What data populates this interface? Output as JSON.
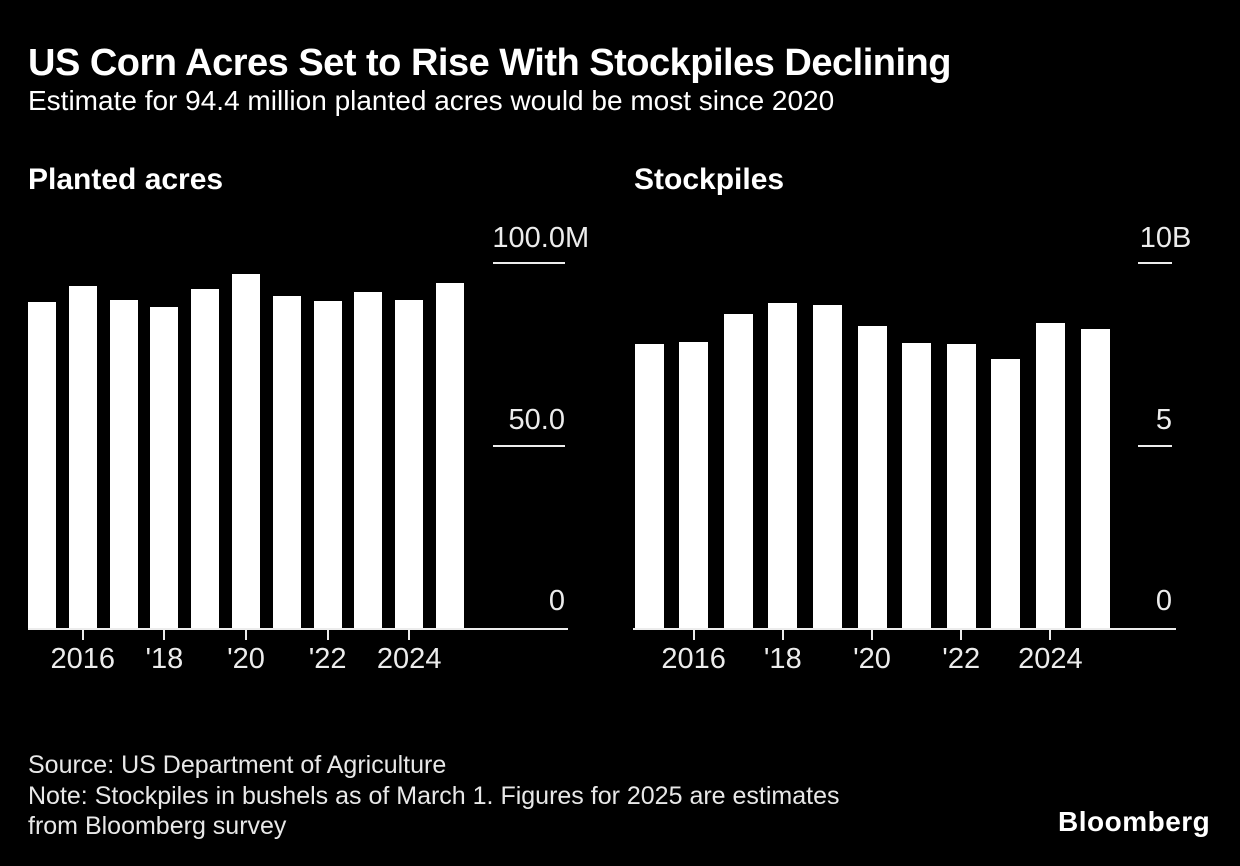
{
  "header": {
    "title": "US Corn Acres Set to Rise With Stockpiles Declining",
    "subtitle": "Estimate for 94.4 million planted acres would be most since 2020"
  },
  "footer": {
    "source": "Source: US Department of Agriculture",
    "note_line1": "Note: Stockpiles in bushels as of March 1. Figures for 2025 are estimates",
    "note_line2": "from Bloomberg survey",
    "logo_text": "Bloomberg"
  },
  "colors": {
    "background": "#000000",
    "bar": "#ffffff",
    "title_text": "#ffffff",
    "axis_and_labels": "#ececec",
    "footer_text": "#e8e8e8"
  },
  "chart_data": [
    {
      "type": "bar",
      "title": "Planted acres",
      "x": [
        2015,
        2016,
        2017,
        2018,
        2019,
        2020,
        2021,
        2022,
        2023,
        2024,
        2025
      ],
      "values": [
        89.2,
        93.6,
        90.0,
        88.0,
        92.8,
        97.0,
        91.1,
        89.5,
        92.0,
        90.0,
        94.4
      ],
      "ylim": [
        0,
        100
      ],
      "y_ticks": [
        {
          "num": "100.0",
          "suffix": "M",
          "value": 100
        },
        {
          "num": "50.0",
          "suffix": "",
          "value": 50
        },
        {
          "num": "0",
          "suffix": "",
          "value": 0
        }
      ],
      "x_tick_labels": [
        "2016",
        "'18",
        "'20",
        "'22",
        "2024"
      ],
      "legend": "none",
      "grid": "right-side tick dashes only"
    },
    {
      "type": "bar",
      "title": "Stockpiles",
      "x": [
        2015,
        2016,
        2017,
        2018,
        2019,
        2020,
        2021,
        2022,
        2023,
        2024,
        2025
      ],
      "values": [
        7.77,
        7.85,
        8.6,
        8.9,
        8.84,
        8.28,
        7.8,
        7.77,
        7.38,
        8.37,
        8.18
      ],
      "ylim": [
        0,
        10
      ],
      "y_ticks": [
        {
          "num": "10",
          "suffix": "B",
          "value": 10
        },
        {
          "num": "5",
          "suffix": "",
          "value": 5
        },
        {
          "num": "0",
          "suffix": "",
          "value": 0
        }
      ],
      "x_tick_labels": [
        "2016",
        "'18",
        "'20",
        "'22",
        "2024"
      ],
      "legend": "none",
      "grid": "right-side tick dashes only"
    }
  ]
}
